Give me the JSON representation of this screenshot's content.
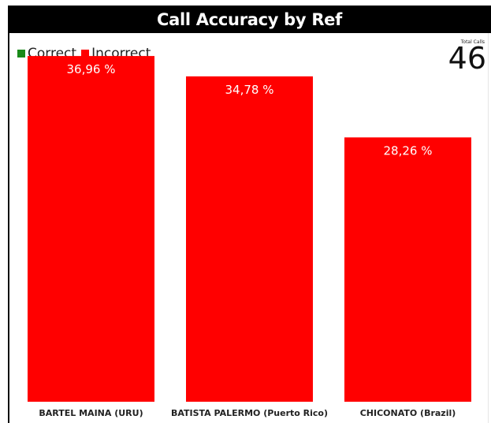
{
  "title": "Call Accuracy by Ref",
  "legend": {
    "items": [
      {
        "label": "Correct",
        "color": "#1a8a1a"
      },
      {
        "label": "Incorrect",
        "color": "#ff0000"
      }
    ]
  },
  "kpi": {
    "label": "Total Calls",
    "value": "46"
  },
  "chart_data": {
    "type": "bar",
    "categories": [
      "BARTEL MAINA (URU)",
      "BATISTA PALERMO (Puerto Rico)",
      "CHICONATO (Brazil)"
    ],
    "series": [
      {
        "name": "Incorrect",
        "values": [
          36.96,
          34.78,
          28.26
        ],
        "color": "#ff0000"
      }
    ],
    "value_labels": [
      "36,96 %",
      "34,78 %",
      "28,26 %"
    ],
    "title": "Call Accuracy by Ref",
    "ylim": [
      0,
      40
    ],
    "grid": false,
    "legend_position": "top-left"
  }
}
